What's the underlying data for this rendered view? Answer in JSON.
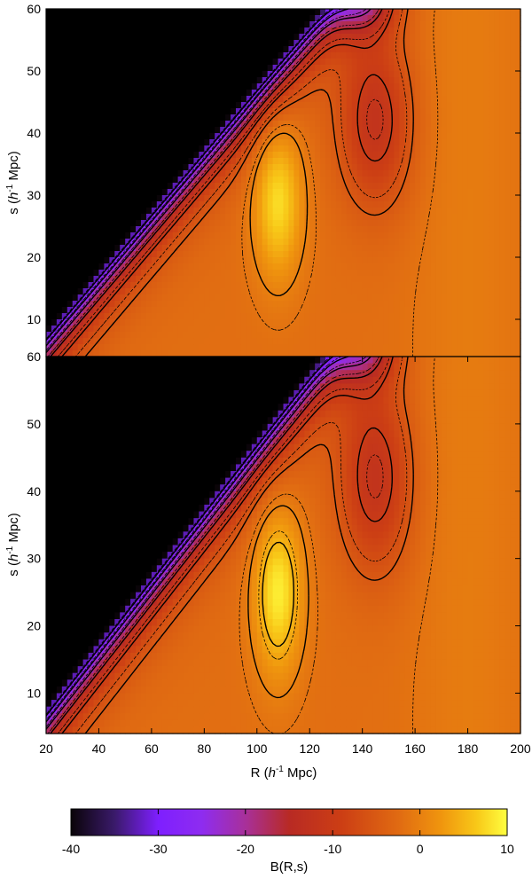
{
  "chart_data": [
    {
      "type": "heatmap",
      "panel": "top",
      "ylabel": "s (h-1 Mpc)",
      "xlim": [
        20,
        200
      ],
      "ylim": [
        4,
        60
      ],
      "y_ticks": [
        10,
        20,
        30,
        40,
        50,
        60
      ],
      "x_ticks": [],
      "grid": false,
      "features": {
        "black_wedge_region": "s > 0.5*R - 2 (upper-left triangle empty/black)",
        "peak_center_R": 108,
        "peak_center_s": 29,
        "peak_value": 7,
        "valley_center_R": 145,
        "valley_center_s": 42,
        "valley_value": -12,
        "small_bumps_R": [
          90,
          113,
          147,
          165,
          188
        ]
      },
      "contours_solid_levels": [
        -30,
        -25,
        -20,
        -15,
        -10,
        -5,
        0
      ],
      "contours_dashed": true
    },
    {
      "type": "heatmap",
      "panel": "bottom",
      "ylabel": "s (h-1 Mpc)",
      "xlabel": "R (h-1 Mpc)",
      "xlim": [
        20,
        200
      ],
      "ylim": [
        4,
        60
      ],
      "x_ticks": [
        20,
        40,
        60,
        80,
        100,
        120,
        140,
        160,
        180,
        200
      ],
      "y_ticks": [
        10,
        20,
        30,
        40,
        50,
        60
      ],
      "grid": false,
      "features": {
        "black_wedge_region": "s > 0.5*R - 2",
        "peak_center_R": 108,
        "peak_center_s": 25,
        "peak_value": 8,
        "valley_center_R": 145,
        "valley_center_s": 42,
        "valley_value": -12,
        "small_bumps_R": [
          90,
          112,
          137,
          147,
          167,
          188
        ]
      },
      "contours_solid_levels": [
        -30,
        -25,
        -20,
        -15,
        -10,
        -5,
        0,
        5
      ],
      "contours_dashed": true
    }
  ],
  "colorbar": {
    "label": "B(R,s)",
    "range": [
      -40,
      10
    ],
    "ticks": [
      -40,
      -30,
      -20,
      -10,
      0,
      10
    ],
    "colormap": [
      "#000000",
      "#7e1fff",
      "#b030d8",
      "#c8281e",
      "#e8781e",
      "#ffff40"
    ]
  }
}
